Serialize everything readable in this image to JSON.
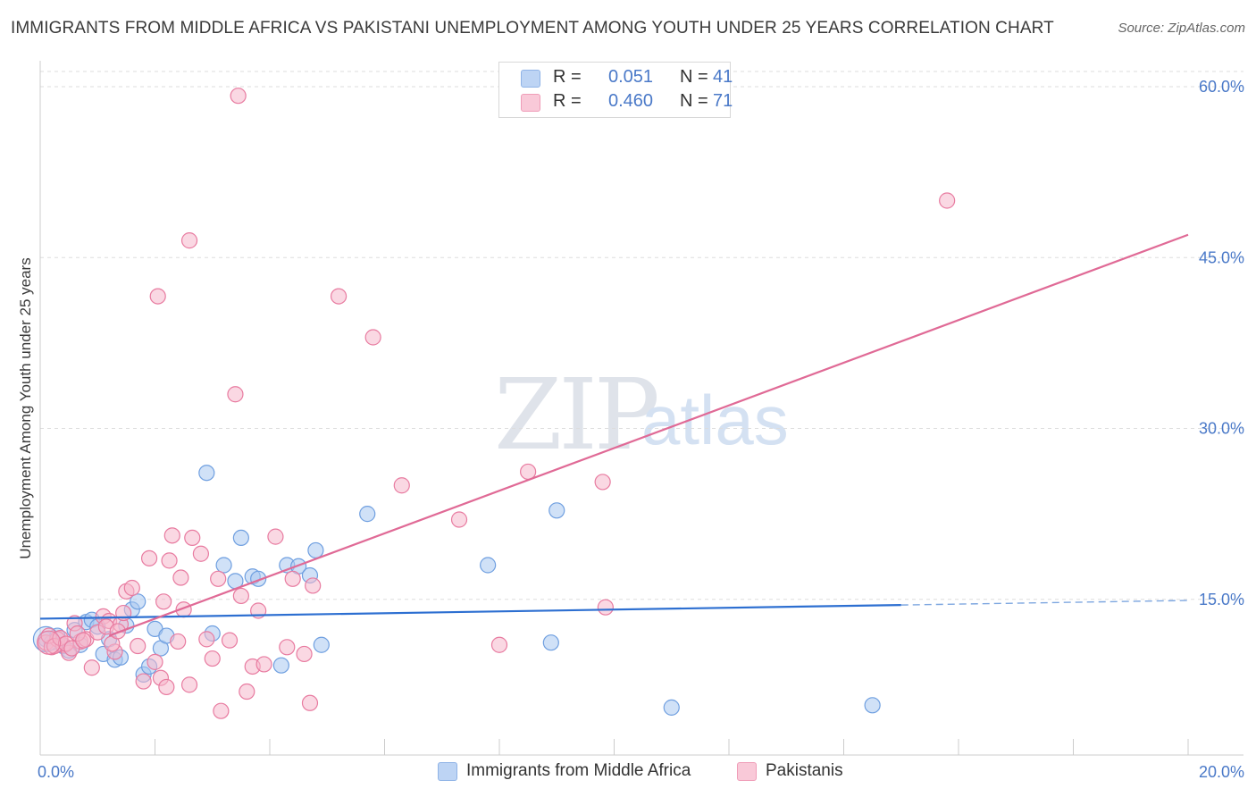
{
  "title": "IMMIGRANTS FROM MIDDLE AFRICA VS PAKISTANI UNEMPLOYMENT AMONG YOUTH UNDER 25 YEARS CORRELATION CHART",
  "source": "Source: ZipAtlas.com",
  "watermark": {
    "zip": "ZIP",
    "atlas": "atlas"
  },
  "legend_top": {
    "rows": [
      {
        "r_label": "R =",
        "r_value": "0.051",
        "n_label": "N =",
        "n_value": "41",
        "color": "#aac8f0"
      },
      {
        "r_label": "R =",
        "r_value": "0.460",
        "n_label": "N =",
        "n_value": "71",
        "color": "#f6b8cc"
      }
    ]
  },
  "legend_bottom": {
    "items": [
      {
        "label": "Immigrants from Middle Africa",
        "color": "#aac8f0"
      },
      {
        "label": "Pakistanis",
        "color": "#f6b8cc"
      }
    ]
  },
  "chart_data": {
    "type": "scatter",
    "title": "IMMIGRANTS FROM MIDDLE AFRICA VS PAKISTANI UNEMPLOYMENT AMONG YOUTH UNDER 25 YEARS CORRELATION CHART",
    "xlabel": "",
    "ylabel": "Unemployment Among Youth under 25 years",
    "xlim": [
      0,
      20
    ],
    "ylim": [
      0,
      60
    ],
    "x_tick_labels": [
      "0.0%",
      "20.0%"
    ],
    "y_ticks": [
      15,
      30,
      45,
      60
    ],
    "y_tick_labels": [
      "15.0%",
      "30.0%",
      "45.0%",
      "60.0%"
    ],
    "grid": "horizontal dashed",
    "legend_position": "top-center",
    "series": [
      {
        "name": "Immigrants from Middle Africa",
        "color": "#6f9fe0",
        "fill": "#aac8f0",
        "trend": {
          "x0": 0,
          "y0": 13.3,
          "x1": 15,
          "y1": 14.5,
          "dashed_to_x": 20,
          "dashed_to_y": 14.9,
          "color": "#2d6fd1"
        },
        "points": [
          [
            0.1,
            11.5
          ],
          [
            0.2,
            11.2
          ],
          [
            0.3,
            11.8
          ],
          [
            0.4,
            10.9
          ],
          [
            0.5,
            10.5
          ],
          [
            0.6,
            12.3
          ],
          [
            0.7,
            11.0
          ],
          [
            0.8,
            13.0
          ],
          [
            0.9,
            13.2
          ],
          [
            1.0,
            12.6
          ],
          [
            1.1,
            10.2
          ],
          [
            1.2,
            11.5
          ],
          [
            1.3,
            9.7
          ],
          [
            1.4,
            9.9
          ],
          [
            1.5,
            12.7
          ],
          [
            1.6,
            14.1
          ],
          [
            1.7,
            14.8
          ],
          [
            1.8,
            8.4
          ],
          [
            1.9,
            9.1
          ],
          [
            2.0,
            12.4
          ],
          [
            2.1,
            10.7
          ],
          [
            2.2,
            11.8
          ],
          [
            2.9,
            26.1
          ],
          [
            3.0,
            12.0
          ],
          [
            3.2,
            18.0
          ],
          [
            3.4,
            16.6
          ],
          [
            3.5,
            20.4
          ],
          [
            3.7,
            17.0
          ],
          [
            3.8,
            16.8
          ],
          [
            4.2,
            9.2
          ],
          [
            4.3,
            18.0
          ],
          [
            4.5,
            17.9
          ],
          [
            4.7,
            17.1
          ],
          [
            4.8,
            19.3
          ],
          [
            4.9,
            11.0
          ],
          [
            5.7,
            22.5
          ],
          [
            7.8,
            18.0
          ],
          [
            8.9,
            11.2
          ],
          [
            9.0,
            22.8
          ],
          [
            11.0,
            5.5
          ],
          [
            14.5,
            5.7
          ]
        ]
      },
      {
        "name": "Pakistanis",
        "color": "#e87ba0",
        "fill": "#f6b8cc",
        "trend": {
          "x0": 1.2,
          "y0": 11.8,
          "x1": 20,
          "y1": 47.0,
          "color": "#e06a96"
        },
        "points": [
          [
            0.1,
            11.2
          ],
          [
            0.2,
            10.8
          ],
          [
            0.3,
            11.5
          ],
          [
            0.4,
            11.0
          ],
          [
            0.5,
            10.3
          ],
          [
            0.6,
            12.9
          ],
          [
            0.7,
            11.3
          ],
          [
            0.8,
            11.5
          ],
          [
            0.9,
            9.0
          ],
          [
            1.0,
            12.1
          ],
          [
            1.1,
            13.5
          ],
          [
            1.2,
            13.1
          ],
          [
            1.3,
            10.4
          ],
          [
            1.4,
            12.8
          ],
          [
            1.5,
            15.7
          ],
          [
            1.6,
            16.0
          ],
          [
            1.7,
            10.9
          ],
          [
            1.8,
            7.8
          ],
          [
            1.9,
            18.6
          ],
          [
            2.0,
            9.5
          ],
          [
            2.1,
            8.1
          ],
          [
            2.2,
            7.3
          ],
          [
            2.25,
            18.4
          ],
          [
            2.3,
            20.6
          ],
          [
            2.4,
            11.3
          ],
          [
            2.5,
            14.1
          ],
          [
            2.6,
            7.5
          ],
          [
            2.65,
            20.4
          ],
          [
            2.8,
            19.0
          ],
          [
            2.9,
            11.5
          ],
          [
            3.0,
            9.8
          ],
          [
            3.1,
            16.8
          ],
          [
            3.15,
            5.2
          ],
          [
            3.3,
            11.4
          ],
          [
            3.5,
            15.3
          ],
          [
            3.6,
            6.9
          ],
          [
            3.7,
            9.1
          ],
          [
            3.8,
            14.0
          ],
          [
            3.9,
            9.3
          ],
          [
            4.1,
            20.5
          ],
          [
            4.3,
            10.8
          ],
          [
            4.4,
            16.8
          ],
          [
            4.6,
            10.2
          ],
          [
            4.7,
            5.9
          ],
          [
            4.75,
            16.2
          ],
          [
            5.2,
            41.6
          ],
          [
            5.8,
            38.0
          ],
          [
            6.3,
            25.0
          ],
          [
            7.3,
            22.0
          ],
          [
            8.0,
            11.0
          ],
          [
            8.5,
            26.2
          ],
          [
            9.8,
            25.3
          ],
          [
            9.85,
            14.3
          ],
          [
            2.05,
            41.6
          ],
          [
            2.6,
            46.5
          ],
          [
            3.4,
            33.0
          ],
          [
            3.45,
            59.2
          ],
          [
            15.8,
            50.0
          ],
          [
            0.15,
            11.8
          ],
          [
            0.25,
            10.9
          ],
          [
            0.35,
            11.6
          ],
          [
            0.45,
            11.1
          ],
          [
            0.55,
            10.7
          ],
          [
            0.65,
            12.0
          ],
          [
            0.75,
            11.4
          ],
          [
            1.15,
            12.6
          ],
          [
            1.25,
            11.1
          ],
          [
            1.35,
            12.2
          ],
          [
            1.45,
            13.8
          ],
          [
            2.15,
            14.8
          ],
          [
            2.45,
            16.9
          ]
        ]
      }
    ]
  }
}
